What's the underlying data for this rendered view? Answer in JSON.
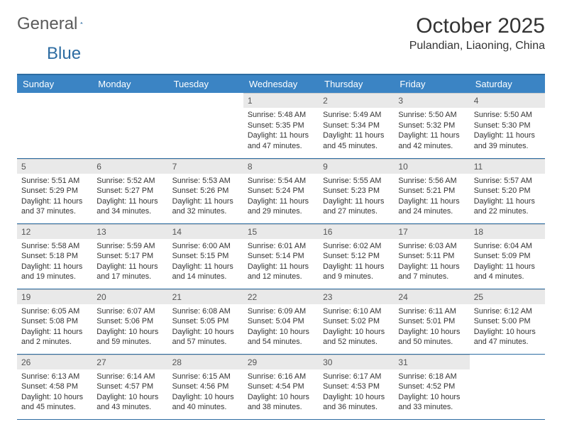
{
  "brand": {
    "general": "General",
    "blue": "Blue"
  },
  "title": "October 2025",
  "location": "Pulandian, Liaoning, China",
  "colors": {
    "header_bg": "#3b84c4",
    "header_border": "#2d6ca2",
    "daynum_bg": "#e9e9e9",
    "text": "#333333",
    "logo_gray": "#5a5a5a",
    "logo_blue": "#2d6ca2"
  },
  "font": {
    "title_size": 30,
    "location_size": 16,
    "header_size": 13,
    "cell_size": 10.8
  },
  "dayNames": [
    "Sunday",
    "Monday",
    "Tuesday",
    "Wednesday",
    "Thursday",
    "Friday",
    "Saturday"
  ],
  "weeks": [
    [
      null,
      null,
      null,
      {
        "n": "1",
        "sr": "Sunrise: 5:48 AM",
        "ss": "Sunset: 5:35 PM",
        "dl": "Daylight: 11 hours and 47 minutes."
      },
      {
        "n": "2",
        "sr": "Sunrise: 5:49 AM",
        "ss": "Sunset: 5:34 PM",
        "dl": "Daylight: 11 hours and 45 minutes."
      },
      {
        "n": "3",
        "sr": "Sunrise: 5:50 AM",
        "ss": "Sunset: 5:32 PM",
        "dl": "Daylight: 11 hours and 42 minutes."
      },
      {
        "n": "4",
        "sr": "Sunrise: 5:50 AM",
        "ss": "Sunset: 5:30 PM",
        "dl": "Daylight: 11 hours and 39 minutes."
      }
    ],
    [
      {
        "n": "5",
        "sr": "Sunrise: 5:51 AM",
        "ss": "Sunset: 5:29 PM",
        "dl": "Daylight: 11 hours and 37 minutes."
      },
      {
        "n": "6",
        "sr": "Sunrise: 5:52 AM",
        "ss": "Sunset: 5:27 PM",
        "dl": "Daylight: 11 hours and 34 minutes."
      },
      {
        "n": "7",
        "sr": "Sunrise: 5:53 AM",
        "ss": "Sunset: 5:26 PM",
        "dl": "Daylight: 11 hours and 32 minutes."
      },
      {
        "n": "8",
        "sr": "Sunrise: 5:54 AM",
        "ss": "Sunset: 5:24 PM",
        "dl": "Daylight: 11 hours and 29 minutes."
      },
      {
        "n": "9",
        "sr": "Sunrise: 5:55 AM",
        "ss": "Sunset: 5:23 PM",
        "dl": "Daylight: 11 hours and 27 minutes."
      },
      {
        "n": "10",
        "sr": "Sunrise: 5:56 AM",
        "ss": "Sunset: 5:21 PM",
        "dl": "Daylight: 11 hours and 24 minutes."
      },
      {
        "n": "11",
        "sr": "Sunrise: 5:57 AM",
        "ss": "Sunset: 5:20 PM",
        "dl": "Daylight: 11 hours and 22 minutes."
      }
    ],
    [
      {
        "n": "12",
        "sr": "Sunrise: 5:58 AM",
        "ss": "Sunset: 5:18 PM",
        "dl": "Daylight: 11 hours and 19 minutes."
      },
      {
        "n": "13",
        "sr": "Sunrise: 5:59 AM",
        "ss": "Sunset: 5:17 PM",
        "dl": "Daylight: 11 hours and 17 minutes."
      },
      {
        "n": "14",
        "sr": "Sunrise: 6:00 AM",
        "ss": "Sunset: 5:15 PM",
        "dl": "Daylight: 11 hours and 14 minutes."
      },
      {
        "n": "15",
        "sr": "Sunrise: 6:01 AM",
        "ss": "Sunset: 5:14 PM",
        "dl": "Daylight: 11 hours and 12 minutes."
      },
      {
        "n": "16",
        "sr": "Sunrise: 6:02 AM",
        "ss": "Sunset: 5:12 PM",
        "dl": "Daylight: 11 hours and 9 minutes."
      },
      {
        "n": "17",
        "sr": "Sunrise: 6:03 AM",
        "ss": "Sunset: 5:11 PM",
        "dl": "Daylight: 11 hours and 7 minutes."
      },
      {
        "n": "18",
        "sr": "Sunrise: 6:04 AM",
        "ss": "Sunset: 5:09 PM",
        "dl": "Daylight: 11 hours and 4 minutes."
      }
    ],
    [
      {
        "n": "19",
        "sr": "Sunrise: 6:05 AM",
        "ss": "Sunset: 5:08 PM",
        "dl": "Daylight: 11 hours and 2 minutes."
      },
      {
        "n": "20",
        "sr": "Sunrise: 6:07 AM",
        "ss": "Sunset: 5:06 PM",
        "dl": "Daylight: 10 hours and 59 minutes."
      },
      {
        "n": "21",
        "sr": "Sunrise: 6:08 AM",
        "ss": "Sunset: 5:05 PM",
        "dl": "Daylight: 10 hours and 57 minutes."
      },
      {
        "n": "22",
        "sr": "Sunrise: 6:09 AM",
        "ss": "Sunset: 5:04 PM",
        "dl": "Daylight: 10 hours and 54 minutes."
      },
      {
        "n": "23",
        "sr": "Sunrise: 6:10 AM",
        "ss": "Sunset: 5:02 PM",
        "dl": "Daylight: 10 hours and 52 minutes."
      },
      {
        "n": "24",
        "sr": "Sunrise: 6:11 AM",
        "ss": "Sunset: 5:01 PM",
        "dl": "Daylight: 10 hours and 50 minutes."
      },
      {
        "n": "25",
        "sr": "Sunrise: 6:12 AM",
        "ss": "Sunset: 5:00 PM",
        "dl": "Daylight: 10 hours and 47 minutes."
      }
    ],
    [
      {
        "n": "26",
        "sr": "Sunrise: 6:13 AM",
        "ss": "Sunset: 4:58 PM",
        "dl": "Daylight: 10 hours and 45 minutes."
      },
      {
        "n": "27",
        "sr": "Sunrise: 6:14 AM",
        "ss": "Sunset: 4:57 PM",
        "dl": "Daylight: 10 hours and 43 minutes."
      },
      {
        "n": "28",
        "sr": "Sunrise: 6:15 AM",
        "ss": "Sunset: 4:56 PM",
        "dl": "Daylight: 10 hours and 40 minutes."
      },
      {
        "n": "29",
        "sr": "Sunrise: 6:16 AM",
        "ss": "Sunset: 4:54 PM",
        "dl": "Daylight: 10 hours and 38 minutes."
      },
      {
        "n": "30",
        "sr": "Sunrise: 6:17 AM",
        "ss": "Sunset: 4:53 PM",
        "dl": "Daylight: 10 hours and 36 minutes."
      },
      {
        "n": "31",
        "sr": "Sunrise: 6:18 AM",
        "ss": "Sunset: 4:52 PM",
        "dl": "Daylight: 10 hours and 33 minutes."
      },
      null
    ]
  ]
}
